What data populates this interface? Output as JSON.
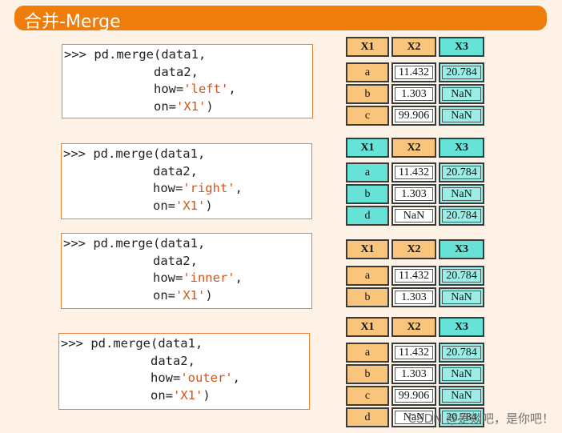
{
  "header": {
    "title": "合并-Merge"
  },
  "blocks": [
    {
      "code": [
        [
          ">>> pd.merge(data1,"
        ],
        [
          "            data2,"
        ],
        [
          "            how=",
          "'left'",
          ","
        ],
        [
          "            on=",
          "'X1'",
          ")"
        ]
      ],
      "table": {
        "header": [
          "X1",
          "X2",
          "X3"
        ],
        "rows": [
          [
            "a",
            "11.432",
            "20.784"
          ],
          [
            "b",
            "1.303",
            "NaN"
          ],
          [
            "c",
            "99.906",
            "NaN"
          ]
        ]
      }
    },
    {
      "code": [
        [
          ">>> pd.merge(data1,"
        ],
        [
          "            data2,"
        ],
        [
          "            how=",
          "'right'",
          ","
        ],
        [
          "            on=",
          "'X1'",
          ")"
        ]
      ],
      "table": {
        "header": [
          "X1",
          "X2",
          "X3"
        ],
        "rows": [
          [
            "a",
            "11.432",
            "20.784"
          ],
          [
            "b",
            "1.303",
            "NaN"
          ],
          [
            "d",
            "NaN",
            "20.784"
          ]
        ]
      }
    },
    {
      "code": [
        [
          ">>> pd.merge(data1,"
        ],
        [
          "            data2,"
        ],
        [
          "            how=",
          "'inner'",
          ","
        ],
        [
          "            on=",
          "'X1'",
          ")"
        ]
      ],
      "table": {
        "header": [
          "X1",
          "X2",
          "X3"
        ],
        "rows": [
          [
            "a",
            "11.432",
            "20.784"
          ],
          [
            "b",
            "1.303",
            "NaN"
          ]
        ]
      }
    },
    {
      "code": [
        [
          ">>> pd.merge(data1,"
        ],
        [
          "            data2,"
        ],
        [
          "            how=",
          "'outer'",
          ","
        ],
        [
          "            on=",
          "'X1'",
          ")"
        ]
      ],
      "table": {
        "header": [
          "X1",
          "X2",
          "X3"
        ],
        "rows": [
          [
            "a",
            "11.432",
            "20.784"
          ],
          [
            "b",
            "1.303",
            "NaN"
          ],
          [
            "c",
            "99.906",
            "NaN"
          ],
          [
            "d",
            "NaN",
            "20.784"
          ]
        ]
      }
    }
  ],
  "watermark": "CSDN @是燚吧，是你吧！"
}
